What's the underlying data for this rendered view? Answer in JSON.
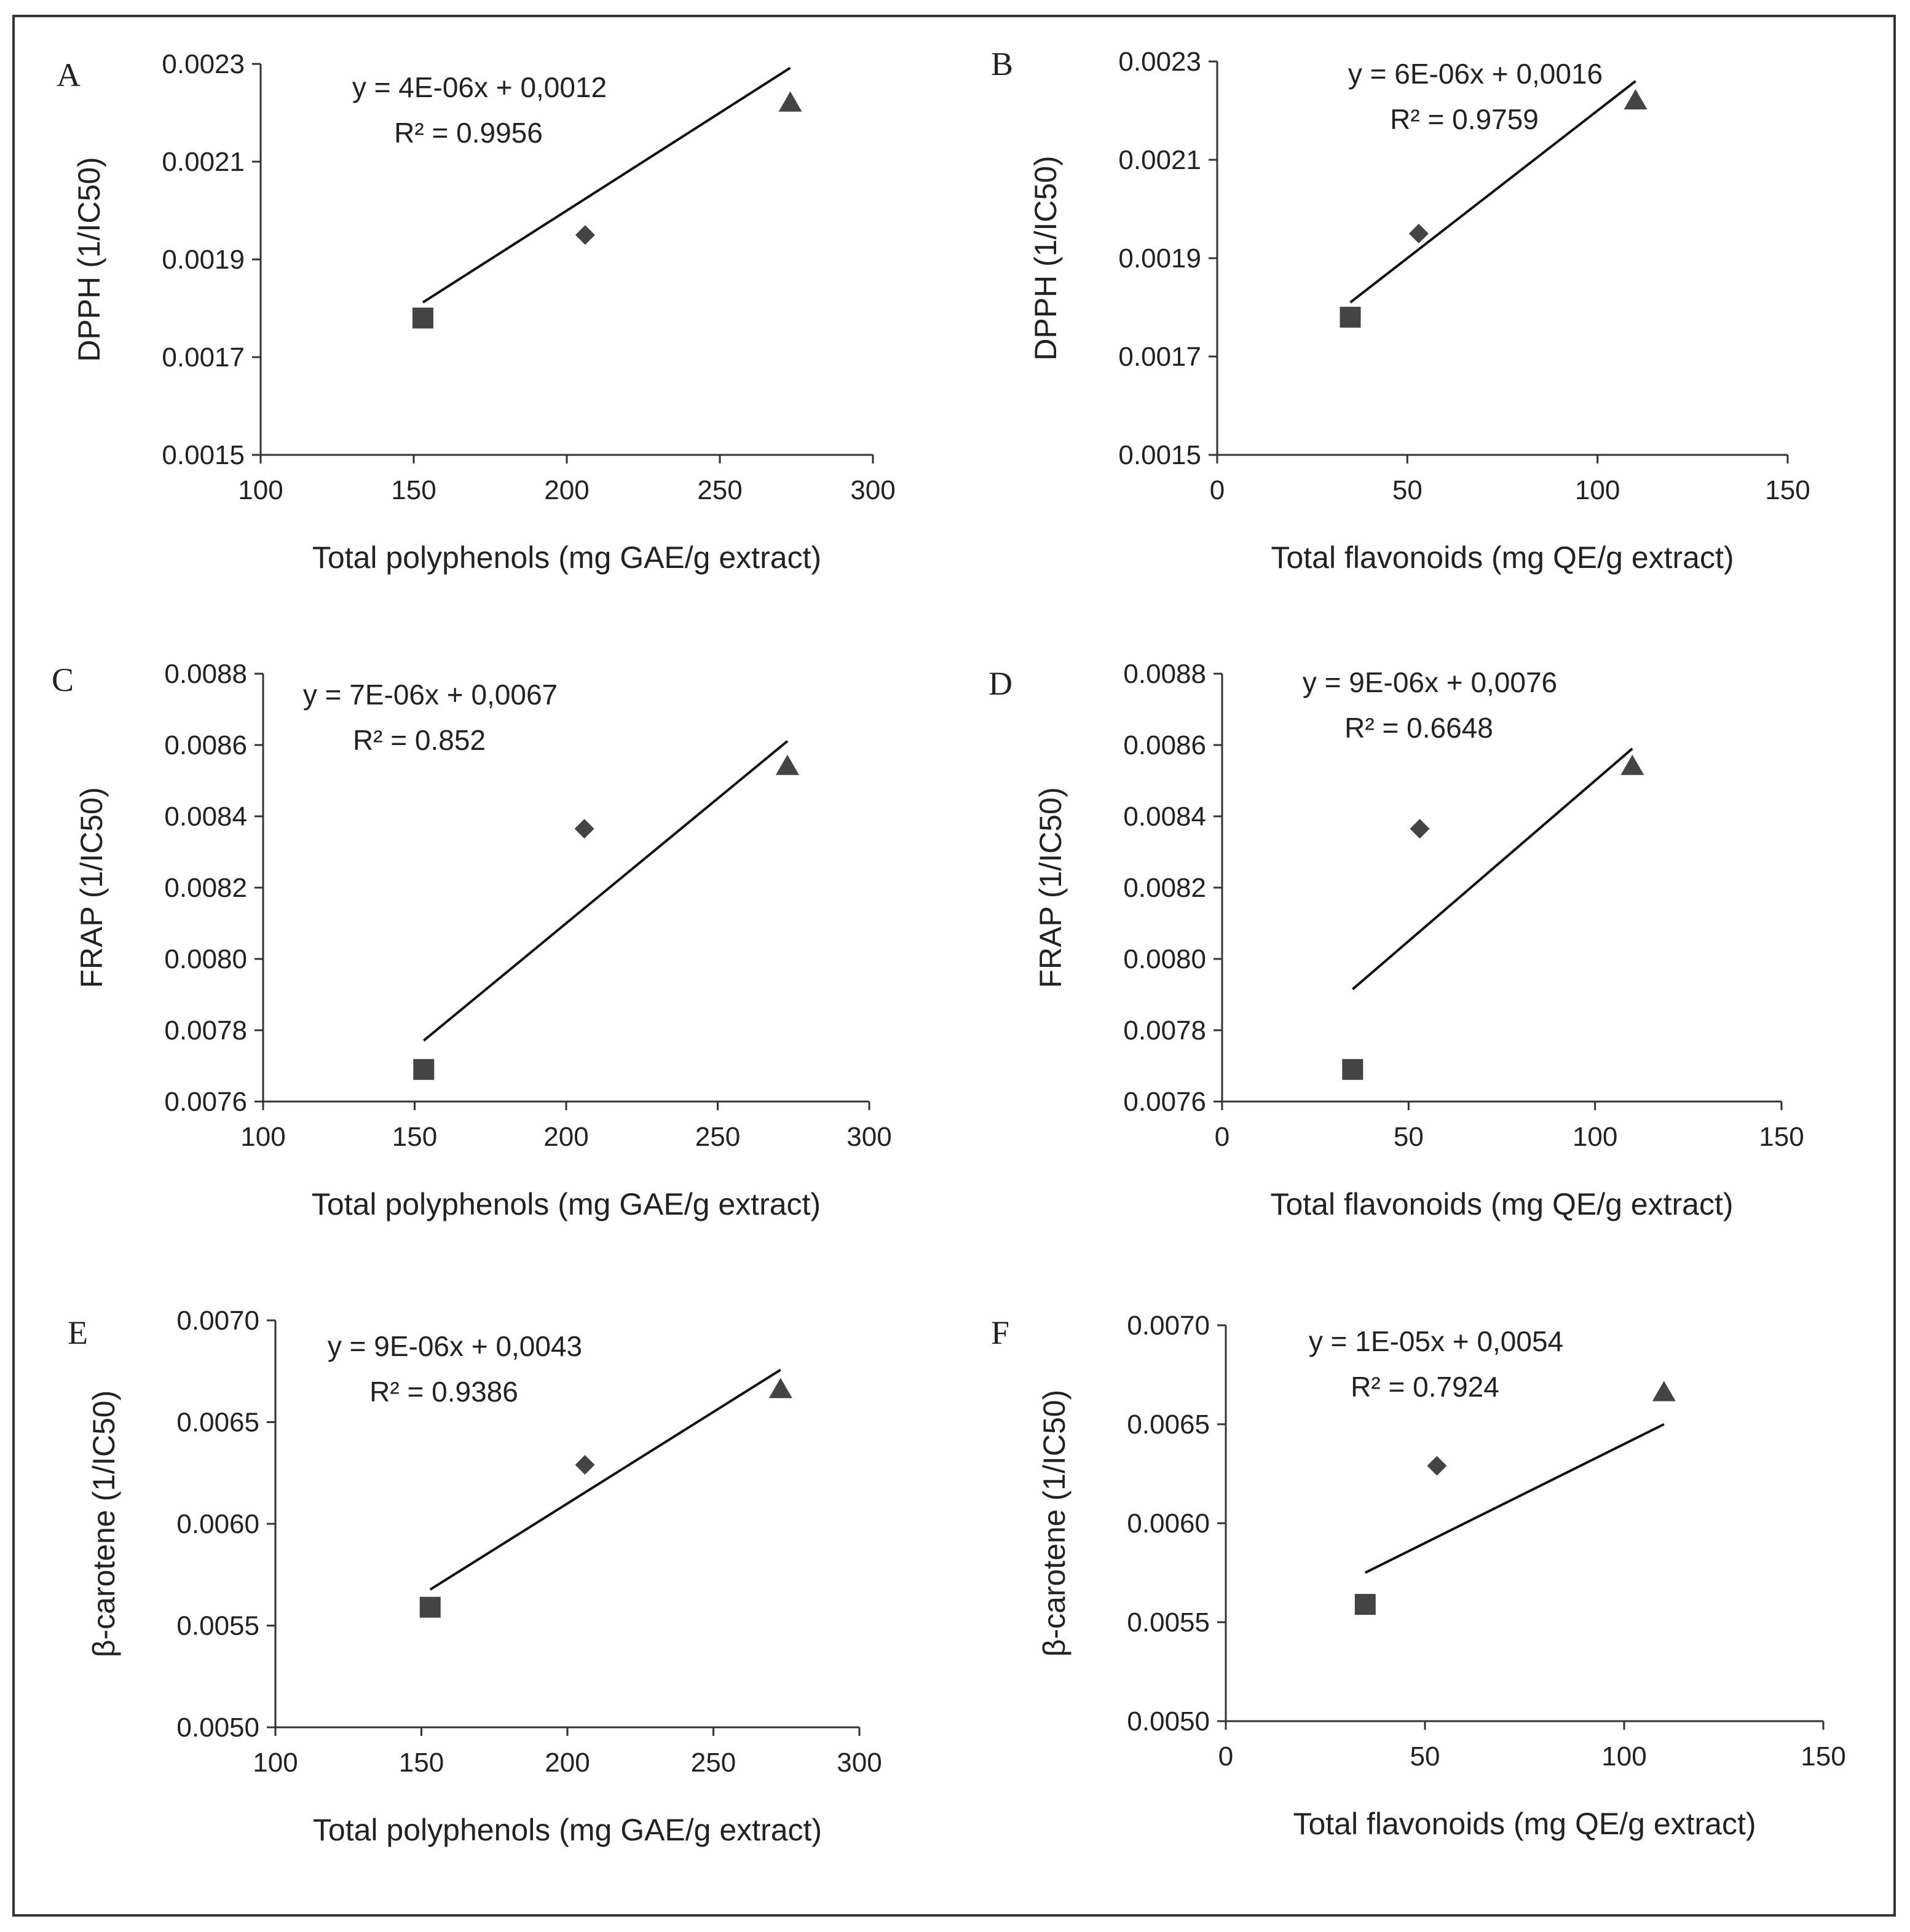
{
  "chart_data": [
    {
      "panel": "A",
      "type": "scatter",
      "xlabel": "Total polyphenols (mg GAE/g extract)",
      "ylabel": "DPPH (1/IC50)",
      "xlim": [
        100,
        300
      ],
      "ylim": [
        0.0015,
        0.0023
      ],
      "xticks": [
        "100",
        "150",
        "200",
        "250",
        "300"
      ],
      "yticks": [
        "0.0015",
        "0.0017",
        "0.0019",
        "0.0021",
        "0.0023"
      ],
      "series": [
        {
          "name": "square",
          "marker": "square",
          "points": [
            [
              153,
              0.00178
            ]
          ]
        },
        {
          "name": "diamond",
          "marker": "diamond",
          "points": [
            [
              206,
              0.00195
            ]
          ]
        },
        {
          "name": "triangle",
          "marker": "triangle",
          "points": [
            [
              273,
              0.00222
            ]
          ]
        }
      ],
      "trendline": {
        "x": [
          153,
          273
        ],
        "slope": 4e-06,
        "intercept": 0.0012
      },
      "equation": "y = 4E-06x + 0,0012",
      "r2": "R² = 0.9956"
    },
    {
      "panel": "B",
      "type": "scatter",
      "xlabel": "Total flavonoids (mg QE/g extract)",
      "ylabel": "DPPH (1/IC50)",
      "xlim": [
        0,
        150
      ],
      "ylim": [
        0.0015,
        0.0023
      ],
      "xticks": [
        "0",
        "50",
        "100",
        "150"
      ],
      "yticks": [
        "0.0015",
        "0.0017",
        "0.0019",
        "0.0021",
        "0.0023"
      ],
      "series": [
        {
          "name": "square",
          "marker": "square",
          "points": [
            [
              35,
              0.00178
            ]
          ]
        },
        {
          "name": "diamond",
          "marker": "diamond",
          "points": [
            [
              53,
              0.00195
            ]
          ]
        },
        {
          "name": "triangle",
          "marker": "triangle",
          "points": [
            [
              110,
              0.00222
            ]
          ]
        }
      ],
      "trendline": {
        "x": [
          35,
          110
        ],
        "slope": 6e-06,
        "intercept": 0.0016
      },
      "equation": "y = 6E-06x + 0,0016",
      "r2": "R² = 0.9759"
    },
    {
      "panel": "C",
      "type": "scatter",
      "xlabel": "Total polyphenols (mg GAE/g extract)",
      "ylabel": "FRAP (1/IC50)",
      "xlim": [
        100,
        300
      ],
      "ylim": [
        0.0076,
        0.0088
      ],
      "xticks": [
        "100",
        "150",
        "200",
        "250",
        "300"
      ],
      "yticks": [
        "0.0076",
        "0.0078",
        "0.0080",
        "0.0082",
        "0.0084",
        "0.0086",
        "0.0088"
      ],
      "series": [
        {
          "name": "square",
          "marker": "square",
          "points": [
            [
              153,
              0.00769
            ]
          ]
        },
        {
          "name": "diamond",
          "marker": "diamond",
          "points": [
            [
              206,
              0.008365
            ]
          ]
        },
        {
          "name": "triangle",
          "marker": "triangle",
          "points": [
            [
              273,
              0.00854
            ]
          ]
        }
      ],
      "trendline": {
        "x": [
          153,
          273
        ],
        "slope": 7e-06,
        "intercept": 0.0067
      },
      "equation": "y = 7E-06x + 0,0067",
      "r2": "R² = 0.852"
    },
    {
      "panel": "D",
      "type": "scatter",
      "xlabel": "Total flavonoids (mg QE/g extract)",
      "ylabel": "FRAP (1/IC50)",
      "xlim": [
        0,
        150
      ],
      "ylim": [
        0.0076,
        0.0088
      ],
      "xticks": [
        "0",
        "50",
        "100",
        "150"
      ],
      "yticks": [
        "0.0076",
        "0.0078",
        "0.0080",
        "0.0082",
        "0.0084",
        "0.0086",
        "0.0088"
      ],
      "series": [
        {
          "name": "square",
          "marker": "square",
          "points": [
            [
              35,
              0.00769
            ]
          ]
        },
        {
          "name": "diamond",
          "marker": "diamond",
          "points": [
            [
              53,
              0.008365
            ]
          ]
        },
        {
          "name": "triangle",
          "marker": "triangle",
          "points": [
            [
              110,
              0.00854
            ]
          ]
        }
      ],
      "trendline": {
        "x": [
          35,
          110
        ],
        "slope": 9e-06,
        "intercept": 0.0076
      },
      "equation": "y = 9E-06x + 0,0076",
      "r2": "R² = 0.6648"
    },
    {
      "panel": "E",
      "type": "scatter",
      "xlabel": "Total polyphenols (mg GAE/g extract)",
      "ylabel": "β-carotene (1/IC50)",
      "xlim": [
        100,
        300
      ],
      "ylim": [
        0.005,
        0.007
      ],
      "xticks": [
        "100",
        "150",
        "200",
        "250",
        "300"
      ],
      "yticks": [
        "0.0050",
        "0.0055",
        "0.0060",
        "0.0065",
        "0.0070"
      ],
      "series": [
        {
          "name": "square",
          "marker": "square",
          "points": [
            [
              153,
              0.00559
            ]
          ]
        },
        {
          "name": "diamond",
          "marker": "diamond",
          "points": [
            [
              206,
              0.00629
            ]
          ]
        },
        {
          "name": "triangle",
          "marker": "triangle",
          "points": [
            [
              273,
              0.00666
            ]
          ]
        }
      ],
      "trendline": {
        "x": [
          153,
          273
        ],
        "slope": 9e-06,
        "intercept": 0.0043
      },
      "equation": "y = 9E-06x + 0,0043",
      "r2": "R² = 0.9386"
    },
    {
      "panel": "F",
      "type": "scatter",
      "xlabel": "Total flavonoids (mg QE/g extract)",
      "ylabel": "β-carotene (1/IC50)",
      "xlim": [
        0,
        150
      ],
      "ylim": [
        0.005,
        0.007
      ],
      "xticks": [
        "0",
        "50",
        "100",
        "150"
      ],
      "yticks": [
        "0.0050",
        "0.0055",
        "0.0060",
        "0.0065",
        "0.0070"
      ],
      "series": [
        {
          "name": "square",
          "marker": "square",
          "points": [
            [
              35,
              0.00559
            ]
          ]
        },
        {
          "name": "diamond",
          "marker": "diamond",
          "points": [
            [
              53,
              0.00629
            ]
          ]
        },
        {
          "name": "triangle",
          "marker": "triangle",
          "points": [
            [
              110,
              0.00666
            ]
          ]
        }
      ],
      "trendline": {
        "x": [
          35,
          110
        ],
        "slope": 1e-05,
        "intercept": 0.0054
      },
      "equation": "y = 1E-05x + 0,0054",
      "r2": "R² = 0.7924"
    }
  ]
}
